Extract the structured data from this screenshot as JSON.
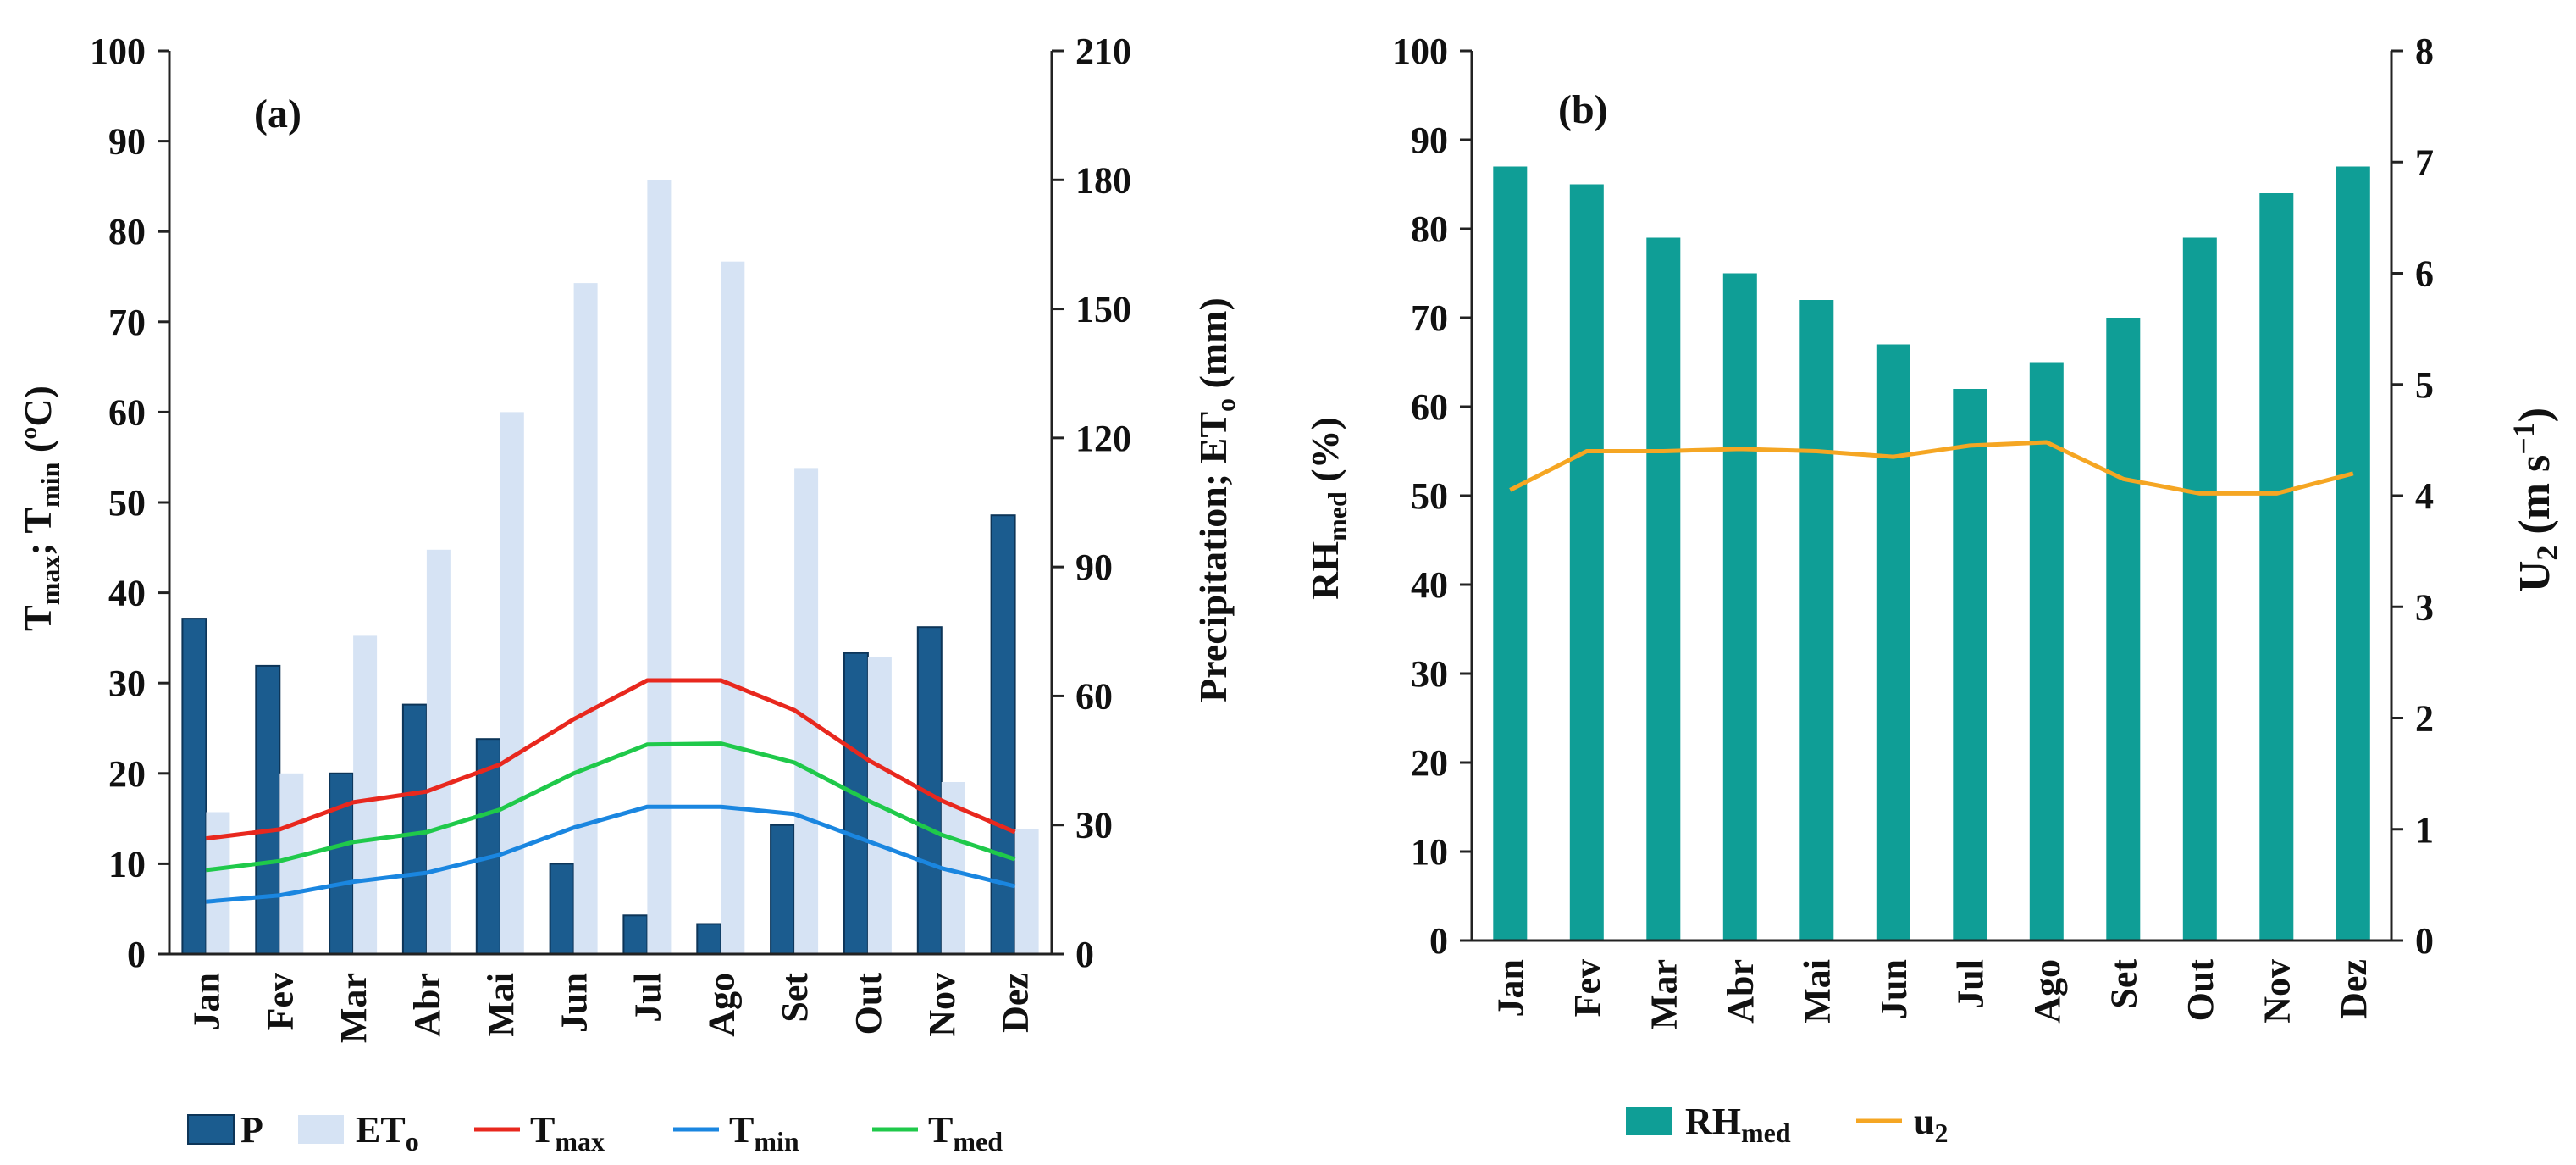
{
  "chart_data": [
    {
      "panel": "(a)",
      "type": "bar+line",
      "categories": [
        "Jan",
        "Fev",
        "Mar",
        "Abr",
        "Mai",
        "Jun",
        "Jul",
        "Ago",
        "Set",
        "Out",
        "Nov",
        "Dez"
      ],
      "left_axis": {
        "label_main": "T",
        "label_sub1": "max",
        "label_sep": "; T",
        "label_sub2": "min",
        "label_unit": " (ºC)",
        "ylim": [
          0,
          100
        ],
        "ticks": [
          0,
          10,
          20,
          30,
          40,
          50,
          60,
          70,
          80,
          90,
          100
        ]
      },
      "right_axis": {
        "label_a": "Precipitation;  ET",
        "label_sub": "o",
        "label_b": " (mm)",
        "ylim": [
          0,
          210
        ],
        "ticks": [
          0,
          30,
          60,
          90,
          120,
          150,
          180,
          210
        ]
      },
      "series": [
        {
          "name": "P",
          "label_sub": "",
          "kind": "bar",
          "axis": "right",
          "color": "#1b5c8f",
          "values": [
            78,
            67,
            42,
            58,
            50,
            21,
            9,
            7,
            30,
            70,
            76,
            102
          ]
        },
        {
          "name": "ET",
          "label_sub": "o",
          "kind": "bar",
          "axis": "right",
          "color": "#d6e3f4",
          "values": [
            33,
            42,
            74,
            94,
            126,
            156,
            180,
            161,
            113,
            69,
            40,
            29
          ]
        },
        {
          "name": "T",
          "label_sub": "max",
          "kind": "line",
          "axis": "left",
          "color": "#e8281e",
          "values": [
            12.8,
            13.8,
            16.8,
            18.0,
            21.0,
            26.0,
            30.3,
            30.3,
            27.0,
            21.5,
            17.0,
            13.5
          ]
        },
        {
          "name": "T",
          "label_sub": "min",
          "kind": "line",
          "axis": "left",
          "color": "#1a86e0",
          "values": [
            5.8,
            6.5,
            8.0,
            9.0,
            11.0,
            14.0,
            16.3,
            16.3,
            15.5,
            12.5,
            9.5,
            7.5
          ]
        },
        {
          "name": "T",
          "label_sub": "med",
          "kind": "line",
          "axis": "left",
          "color": "#1fc94a",
          "values": [
            9.3,
            10.3,
            12.4,
            13.5,
            16.0,
            20.0,
            23.2,
            23.3,
            21.2,
            17.0,
            13.2,
            10.5
          ]
        }
      ]
    },
    {
      "panel": "(b)",
      "type": "bar+line",
      "categories": [
        "Jan",
        "Fev",
        "Mar",
        "Abr",
        "Mai",
        "Jun",
        "Jul",
        "Ago",
        "Set",
        "Out",
        "Nov",
        "Dez"
      ],
      "left_axis": {
        "label_main": "RH",
        "label_sub": "med",
        "label_unit": " (%)",
        "ylim": [
          0,
          100
        ],
        "ticks": [
          0,
          10,
          20,
          30,
          40,
          50,
          60,
          70,
          80,
          90,
          100
        ]
      },
      "right_axis": {
        "label_main": "U",
        "label_sub": "2",
        "label_unit": " (m s",
        "label_sup": "−1",
        "label_end": ")",
        "ylim": [
          0,
          8
        ],
        "ticks": [
          0,
          1,
          2,
          3,
          4,
          5,
          6,
          7,
          8
        ]
      },
      "series": [
        {
          "name": "RH",
          "label_sub": "med",
          "kind": "bar",
          "axis": "left",
          "color": "#0f9e96",
          "values": [
            87,
            85,
            79,
            75,
            72,
            67,
            62,
            65,
            70,
            79,
            84,
            87
          ]
        },
        {
          "name": "u",
          "label_sub": "2",
          "kind": "line",
          "axis": "right",
          "color": "#f5a623",
          "values": [
            4.05,
            4.4,
            4.4,
            4.42,
            4.4,
            4.35,
            4.45,
            4.48,
            4.15,
            4.02,
            4.02,
            4.2
          ]
        }
      ]
    }
  ]
}
